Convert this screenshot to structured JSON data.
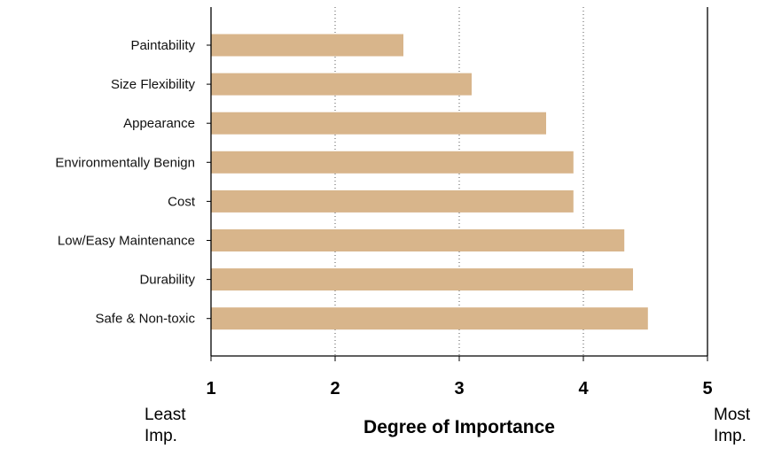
{
  "chart_data": {
    "type": "bar",
    "orientation": "horizontal",
    "categories": [
      "Paintability",
      "Size Flexibility",
      "Appearance",
      "Environmentally Benign",
      "Cost",
      "Low/Easy Maintenance",
      "Durability",
      "Safe & Non-toxic"
    ],
    "values": [
      2.55,
      3.1,
      3.7,
      3.92,
      3.92,
      4.33,
      4.4,
      4.52
    ],
    "xlim": [
      1,
      5
    ],
    "xticks": [
      "1",
      "2",
      "3",
      "4",
      "5"
    ],
    "xlabel": "Degree of Importance",
    "xlabel_left": "Least Imp.",
    "xlabel_left_lines": [
      "Least",
      "Imp."
    ],
    "xlabel_right": "Most Imp.",
    "xlabel_right_lines": [
      "Most",
      "Imp."
    ],
    "title": "",
    "bar_color": "#d8b58b",
    "gridlines": "vertical dotted",
    "legend": "none"
  }
}
